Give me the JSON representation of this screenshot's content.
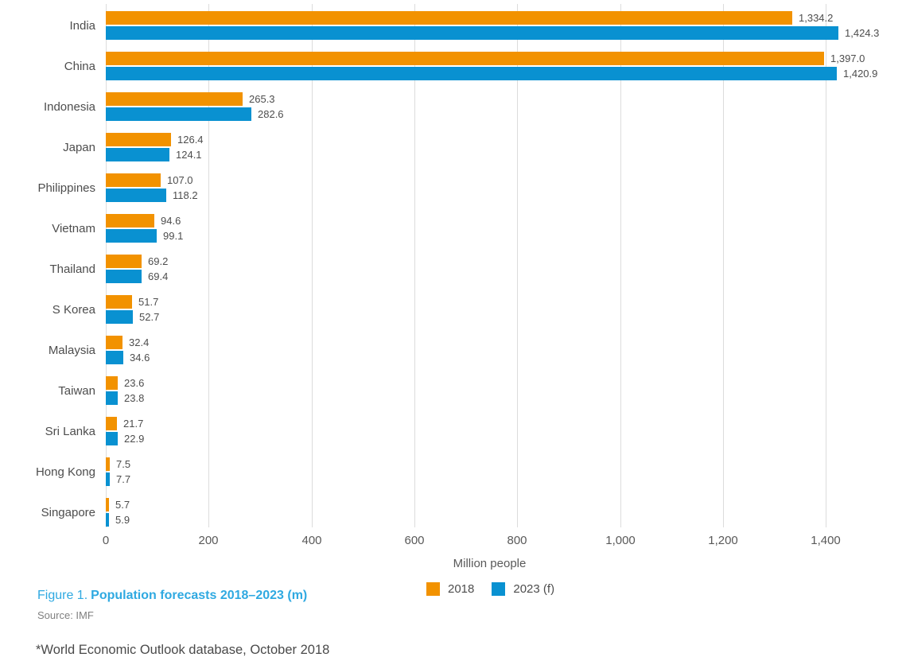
{
  "chart_data": {
    "type": "bar",
    "orientation": "horizontal",
    "title": "Figure 1. Population forecasts 2018–2023 (m)",
    "xlabel": "Million people",
    "categories": [
      "India",
      "China",
      "Indonesia",
      "Japan",
      "Philippines",
      "Vietnam",
      "Thailand",
      "S Korea",
      "Malaysia",
      "Taiwan",
      "Sri Lanka",
      "Hong Kong",
      "Singapore"
    ],
    "series": [
      {
        "name": "2018",
        "color": "#f29200",
        "values": [
          1334.2,
          1397.0,
          265.3,
          126.4,
          107.0,
          94.6,
          69.2,
          51.7,
          32.4,
          23.6,
          21.7,
          7.5,
          5.7
        ],
        "labels": [
          "1,334.2",
          "1,397.0",
          "265.3",
          "126.4",
          "107.0",
          "94.6",
          "69.2",
          "51.7",
          "32.4",
          "23.6",
          "21.7",
          "7.5",
          "5.7"
        ]
      },
      {
        "name": "2023 (f)",
        "color": "#0991d1",
        "values": [
          1424.3,
          1420.9,
          282.6,
          124.1,
          118.2,
          99.1,
          69.4,
          52.7,
          34.6,
          23.8,
          22.9,
          7.7,
          5.9
        ],
        "labels": [
          "1,424.3",
          "1,420.9",
          "282.6",
          "124.1",
          "118.2",
          "99.1",
          "69.4",
          "52.7",
          "34.6",
          "23.8",
          "22.9",
          "7.7",
          "5.9"
        ]
      }
    ],
    "xlim": [
      0,
      1500
    ],
    "xticks": {
      "values": [
        0,
        200,
        400,
        600,
        800,
        1000,
        1200,
        1400
      ],
      "labels": [
        "0",
        "200",
        "400",
        "600",
        "800",
        "1,000",
        "1,200",
        "1,400"
      ]
    },
    "grid": "vertical-only",
    "legend_position": "bottom-center"
  },
  "caption": {
    "figure_label": "Figure 1.",
    "title": "Population forecasts 2018–2023 (m)",
    "source": "Source: IMF"
  },
  "footnote": "*World Economic Outlook database, October 2018",
  "colors": {
    "bar_2018": "#f29200",
    "bar_2023": "#0991d1",
    "caption_blue": "#2fa9e1",
    "gridline": "#dcdcdc",
    "category_text": "#4d4d4d",
    "tick_text": "#595959",
    "source_text": "#808080",
    "footnote_text": "#4a4a4a"
  }
}
